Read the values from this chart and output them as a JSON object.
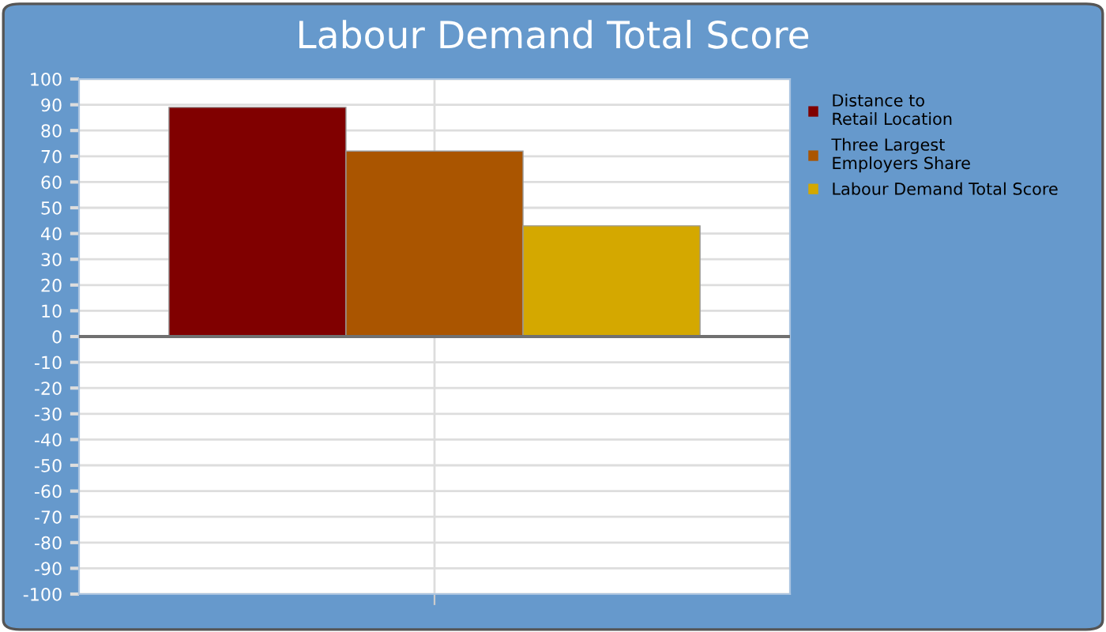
{
  "chart_data": {
    "type": "bar",
    "title": "Labour Demand Total Score",
    "categories": [
      null
    ],
    "series": [
      {
        "name": "Distance to\nRetail Location",
        "color": "#800000",
        "values": [
          89
        ]
      },
      {
        "name": "Three Largest\nEmployers Share",
        "color": "#aa5500",
        "values": [
          72
        ]
      },
      {
        "name": "Labour Demand Total Score",
        "color": "#d4a800",
        "values": [
          43
        ]
      }
    ],
    "ylim": [
      -100,
      100
    ],
    "yticks": [
      -100,
      -90,
      -80,
      -70,
      -60,
      -50,
      -40,
      -30,
      -20,
      -10,
      0,
      10,
      20,
      30,
      40,
      50,
      60,
      70,
      80,
      90,
      100
    ],
    "grid": true,
    "legend": "right"
  }
}
